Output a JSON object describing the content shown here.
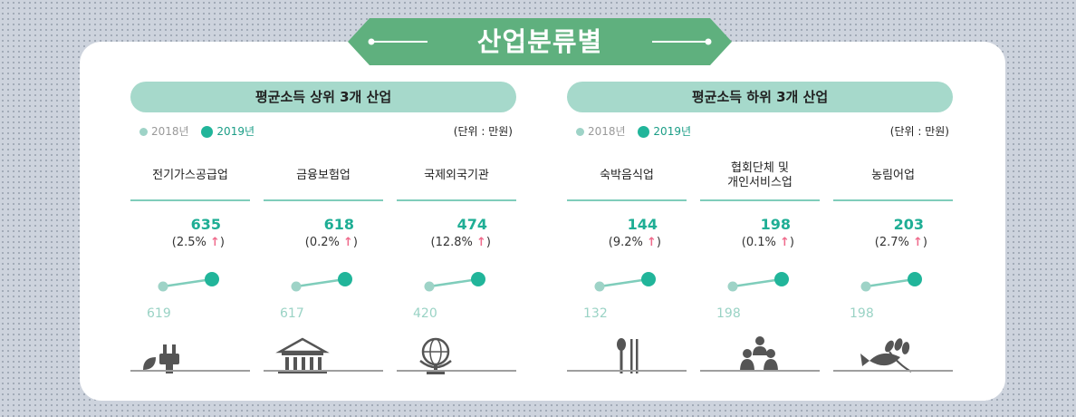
{
  "title": "산업분류별",
  "legend": {
    "y2018": "2018년",
    "y2019": "2019년"
  },
  "unit": "(단위 : 만원)",
  "colors": {
    "accent": "#21b59a",
    "light": "#9ed3c7",
    "banner": "#5fb07e",
    "arrow": "#ef6b8c"
  },
  "panels": [
    {
      "header": "평균소득 상위 3개 산업",
      "items": [
        {
          "name": "전기가스공급업",
          "v2018": "619",
          "v2019": "635",
          "change": "(2.5%",
          "icon": "plug-leaf-icon"
        },
        {
          "name": "금융보험업",
          "v2018": "617",
          "v2019": "618",
          "change": "(0.2%",
          "icon": "bank-icon"
        },
        {
          "name": "국제외국기관",
          "v2018": "420",
          "v2019": "474",
          "change": "(12.8%",
          "icon": "globe-icon"
        }
      ]
    },
    {
      "header": "평균소득 하위 3개 산업",
      "items": [
        {
          "name": "숙박음식업",
          "v2018": "132",
          "v2019": "144",
          "change": "(9.2%",
          "icon": "spoon-chopsticks-icon"
        },
        {
          "name": "협회단체 및\n개인서비스업",
          "v2018": "198",
          "v2019": "198",
          "change": "(0.1%",
          "icon": "people-group-icon"
        },
        {
          "name": "농림어업",
          "v2018": "198",
          "v2019": "203",
          "change": "(2.7%",
          "icon": "fish-wheat-icon"
        }
      ]
    }
  ],
  "arrow_symbol": "↑",
  "close_paren": ")",
  "chart_data": {
    "type": "scatter",
    "x": [
      "2018년",
      "2019년"
    ],
    "categories": [
      "전기가스공급업",
      "금융보험업",
      "국제외국기관",
      "숙박음식업",
      "협회단체 및 개인서비스업",
      "농림어업"
    ],
    "series": [
      {
        "name": "2018년",
        "values": [
          619,
          617,
          420,
          132,
          198,
          198
        ]
      },
      {
        "name": "2019년",
        "values": [
          635,
          618,
          474,
          144,
          198,
          203
        ]
      }
    ],
    "change_pct": [
      2.5,
      0.2,
      12.8,
      9.2,
      0.1,
      2.7
    ],
    "ylabel": "",
    "unit": "만원"
  }
}
